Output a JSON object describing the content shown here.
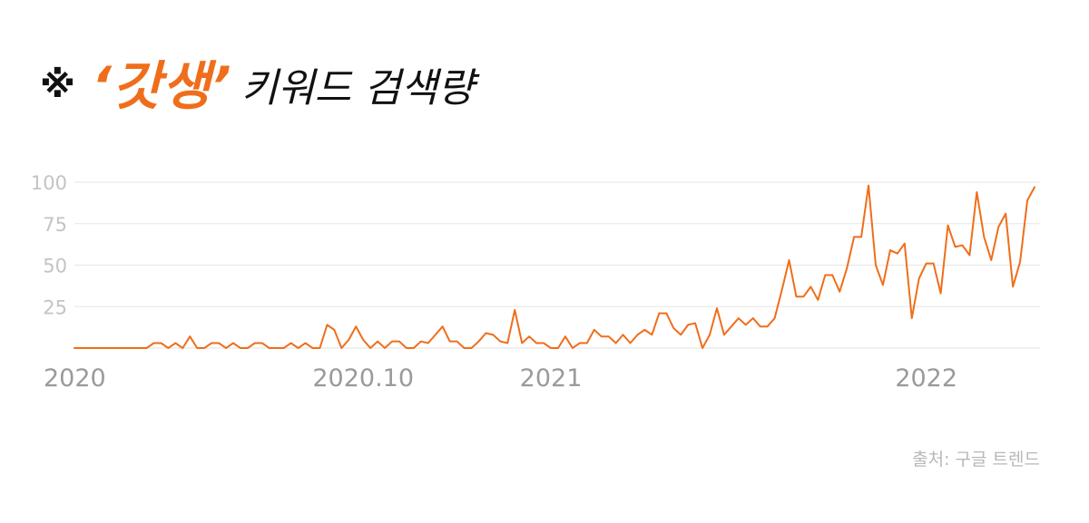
{
  "title": {
    "mark": "※",
    "keyword": "‘갓생’",
    "rest": "키워드 검색량"
  },
  "source": "출처: 구글 트렌드",
  "colors": {
    "line": "#ef6e1b",
    "grid": "#e6e6e6",
    "ytick": "#c4c4c4",
    "xtick": "#9a9a9a"
  },
  "chart_data": {
    "type": "line",
    "ylim": [
      0,
      100
    ],
    "yticks": [
      25,
      50,
      75,
      100
    ],
    "ytick_labels": [
      "25",
      "50",
      "75",
      "100"
    ],
    "xticks": [
      {
        "label": "2020",
        "index": 0
      },
      {
        "label": "2020.10",
        "index": 40
      },
      {
        "label": "2021",
        "index": 66
      },
      {
        "label": "2022",
        "index": 118
      }
    ],
    "grid": true,
    "series": [
      {
        "values": [
          0,
          0,
          0,
          0,
          0,
          0,
          0,
          0,
          0,
          0,
          0,
          3,
          3,
          0,
          3,
          0,
          7,
          0,
          0,
          3,
          3,
          0,
          3,
          0,
          0,
          3,
          3,
          0,
          0,
          0,
          3,
          0,
          3,
          0,
          0,
          14,
          11,
          0,
          5,
          13,
          5,
          0,
          4,
          0,
          4,
          4,
          0,
          0,
          4,
          3,
          8,
          13,
          4,
          4,
          0,
          0,
          4,
          9,
          8,
          4,
          3,
          23,
          3,
          7,
          3,
          3,
          0,
          0,
          7,
          0,
          3,
          3,
          11,
          7,
          7,
          3,
          8,
          3,
          8,
          11,
          8,
          21,
          21,
          12,
          8,
          14,
          15,
          0,
          8,
          24,
          8,
          13,
          18,
          14,
          18,
          13,
          13,
          18,
          35,
          53,
          31,
          31,
          37,
          29,
          44,
          44,
          34,
          48,
          67,
          67,
          98,
          50,
          38,
          59,
          57,
          63,
          18,
          42,
          51,
          51,
          33,
          74,
          61,
          62,
          56,
          94,
          67,
          53,
          73,
          81,
          37,
          52,
          89,
          97
        ]
      }
    ]
  }
}
